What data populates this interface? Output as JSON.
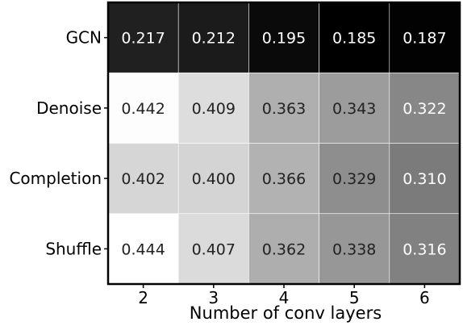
{
  "chart_data": {
    "type": "heatmap",
    "title": "",
    "xlabel": "Number of conv layers",
    "ylabel": "",
    "x_categories": [
      "2",
      "3",
      "4",
      "5",
      "6"
    ],
    "y_categories": [
      "GCN",
      "Denoise",
      "Completion",
      "Shuffle"
    ],
    "values": [
      [
        0.217,
        0.212,
        0.195,
        0.185,
        0.187
      ],
      [
        0.442,
        0.409,
        0.363,
        0.343,
        0.322
      ],
      [
        0.402,
        0.4,
        0.366,
        0.329,
        0.31
      ],
      [
        0.444,
        0.407,
        0.362,
        0.338,
        0.316
      ]
    ],
    "value_format": "0.000",
    "colormap": "grayscale",
    "color_low": "#000000",
    "color_high": "#ffffff",
    "grid": false,
    "legend": "none"
  }
}
